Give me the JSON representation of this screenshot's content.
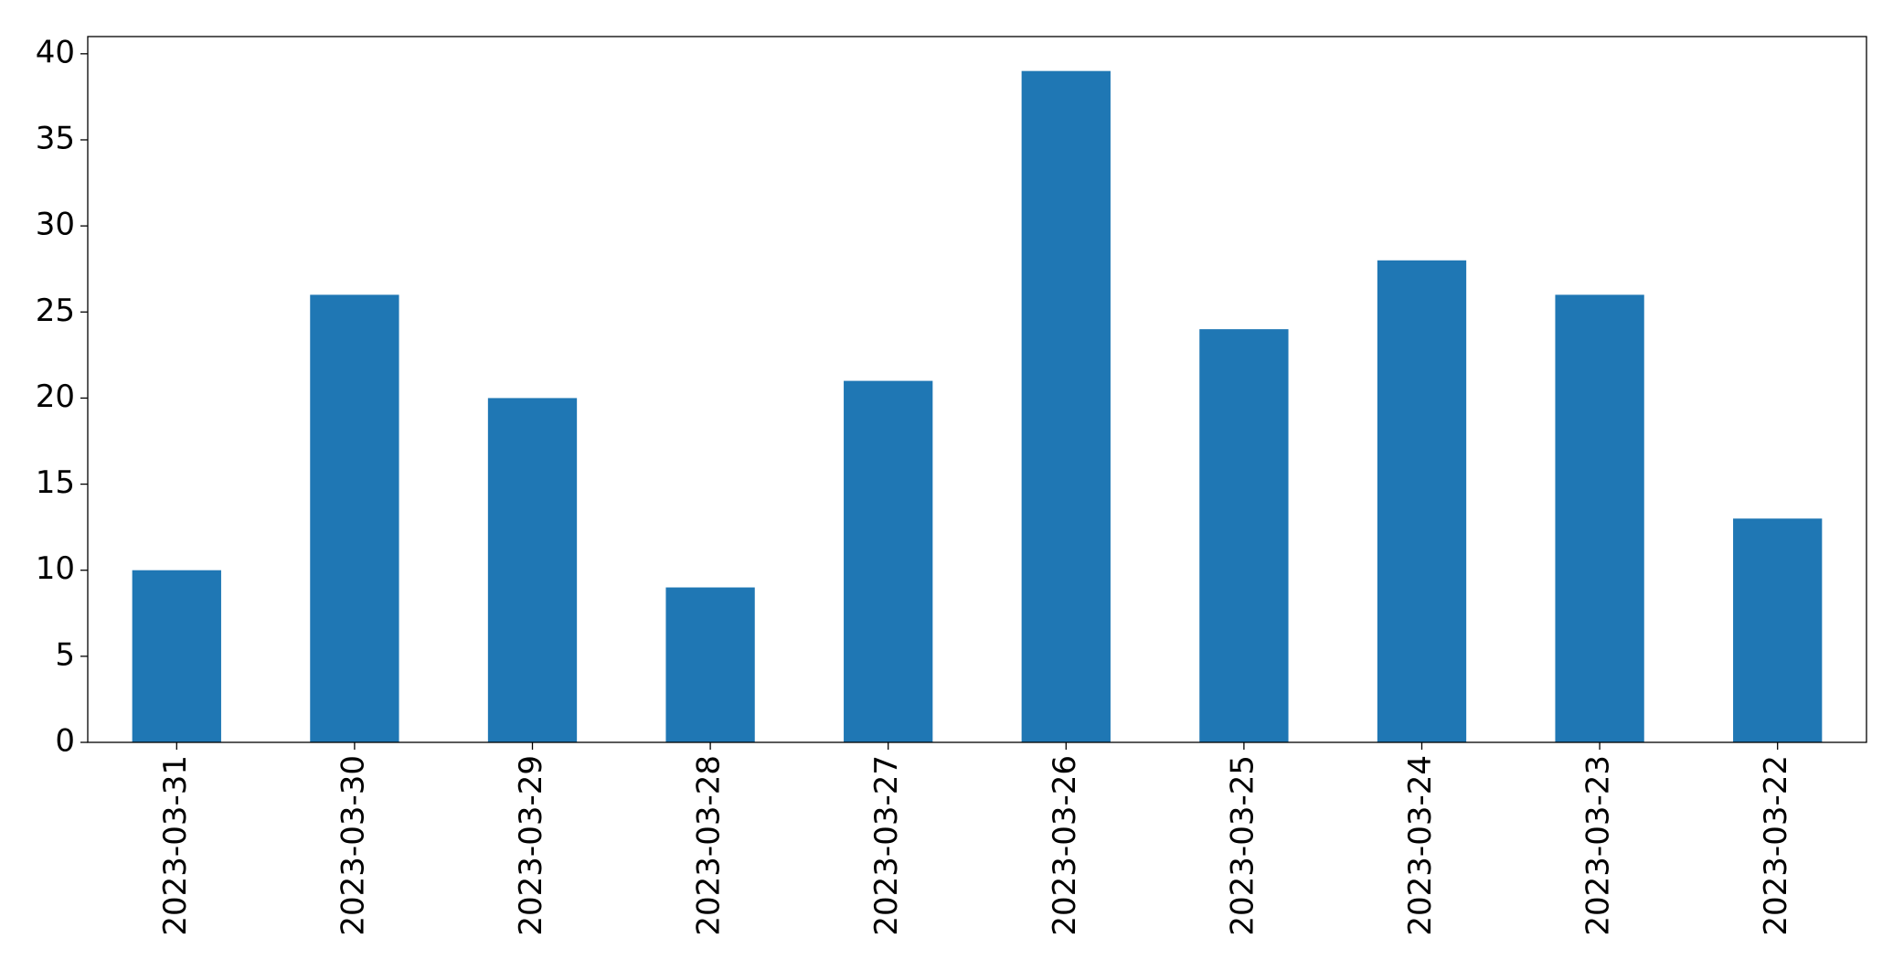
{
  "chart_data": {
    "type": "bar",
    "categories": [
      "2023-03-31",
      "2023-03-30",
      "2023-03-29",
      "2023-03-28",
      "2023-03-27",
      "2023-03-26",
      "2023-03-25",
      "2023-03-24",
      "2023-03-23",
      "2023-03-22"
    ],
    "values": [
      10,
      26,
      20,
      9,
      21,
      39,
      24,
      28,
      26,
      13
    ],
    "color": "#1f77b4",
    "ylim": [
      0,
      41
    ],
    "yticks": [
      0,
      5,
      10,
      15,
      20,
      25,
      30,
      35,
      40
    ],
    "grid": false
  }
}
